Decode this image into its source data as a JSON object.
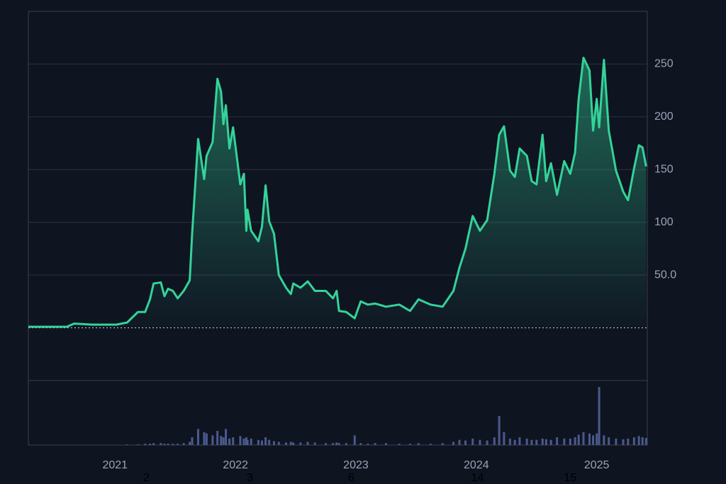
{
  "chart_data": {
    "type": "area",
    "x": [
      2020.28,
      2020.6,
      2020.66,
      2020.81,
      2021.01,
      2021.1,
      2021.19,
      2021.25,
      2021.29,
      2021.32,
      2021.38,
      2021.41,
      2021.44,
      2021.48,
      2021.52,
      2021.57,
      2021.62,
      2021.64,
      2021.69,
      2021.74,
      2021.76,
      2021.81,
      2021.85,
      2021.88,
      2021.9,
      2021.92,
      2021.95,
      2021.98,
      2022.04,
      2022.07,
      2022.09,
      2022.1,
      2022.13,
      2022.19,
      2022.22,
      2022.25,
      2022.28,
      2022.32,
      2022.36,
      2022.42,
      2022.46,
      2022.48,
      2022.54,
      2022.6,
      2022.66,
      2022.75,
      2022.81,
      2022.84,
      2022.86,
      2022.92,
      2022.99,
      2023.04,
      2023.1,
      2023.16,
      2023.25,
      2023.36,
      2023.45,
      2023.52,
      2023.62,
      2023.72,
      2023.81,
      2023.86,
      2023.91,
      2023.97,
      2024.03,
      2024.09,
      2024.15,
      2024.19,
      2024.23,
      2024.28,
      2024.32,
      2024.36,
      2024.42,
      2024.46,
      2024.5,
      2024.55,
      2024.58,
      2024.62,
      2024.67,
      2024.73,
      2024.78,
      2024.82,
      2024.85,
      2024.89,
      2024.94,
      2024.97,
      2025.0,
      2025.02,
      2025.06,
      2025.1,
      2025.16,
      2025.22,
      2025.26,
      2025.31,
      2025.35,
      2025.38,
      2025.41
    ],
    "values": [
      1,
      1,
      4,
      3,
      3,
      5,
      15,
      15,
      27,
      42,
      43,
      30,
      37,
      35,
      28,
      35,
      45,
      89,
      179,
      141,
      163,
      176,
      236,
      224,
      193,
      211,
      170,
      190,
      136,
      146,
      92,
      112,
      92,
      82,
      96,
      135,
      101,
      89,
      50,
      38,
      32,
      42,
      38,
      44,
      35,
      35,
      28,
      35,
      16,
      15,
      9,
      25,
      22,
      23,
      20,
      22,
      16,
      27,
      22,
      20,
      35,
      57,
      75,
      106,
      92,
      102,
      146,
      183,
      191,
      149,
      143,
      170,
      163,
      139,
      136,
      183,
      139,
      156,
      126,
      158,
      146,
      166,
      217,
      256,
      244,
      187,
      217,
      190,
      254,
      187,
      149,
      129,
      121,
      151,
      173,
      171,
      153
    ],
    "volume": [
      0,
      0,
      0,
      0,
      0,
      1,
      1,
      2,
      2,
      3,
      3,
      2,
      2,
      2,
      2,
      3,
      5,
      12,
      25,
      20,
      18,
      15,
      22,
      14,
      12,
      25,
      10,
      12,
      14,
      10,
      12,
      8,
      10,
      8,
      7,
      12,
      8,
      6,
      5,
      4,
      5,
      4,
      4,
      5,
      4,
      3,
      3,
      4,
      3,
      3,
      15,
      3,
      2,
      3,
      3,
      2,
      2,
      3,
      2,
      3,
      5,
      8,
      7,
      10,
      8,
      7,
      12,
      45,
      20,
      10,
      8,
      12,
      10,
      8,
      8,
      10,
      9,
      8,
      12,
      10,
      10,
      12,
      16,
      20,
      18,
      15,
      18,
      90,
      15,
      12,
      10,
      9,
      10,
      12,
      14,
      12,
      11
    ],
    "color": "#34d399",
    "volume_color": "#4a5a8c",
    "xlim": [
      2020.28,
      2025.42
    ],
    "xticks": [
      2021,
      2022,
      2023,
      2024,
      2025
    ],
    "ylim": [
      -50,
      300
    ],
    "yticks": [
      {
        "value": 50,
        "label": "50.0"
      },
      100,
      150,
      200,
      250
    ],
    "volume_ylim": [
      0,
      100
    ],
    "grid": true,
    "annotations": [
      {
        "x": 2021.26,
        "label": "2"
      },
      {
        "x": 2022.12,
        "label": "3"
      },
      {
        "x": 2022.96,
        "label": "6"
      },
      {
        "x": 2024.01,
        "label": "14"
      },
      {
        "x": 2024.78,
        "label": "15"
      }
    ]
  }
}
